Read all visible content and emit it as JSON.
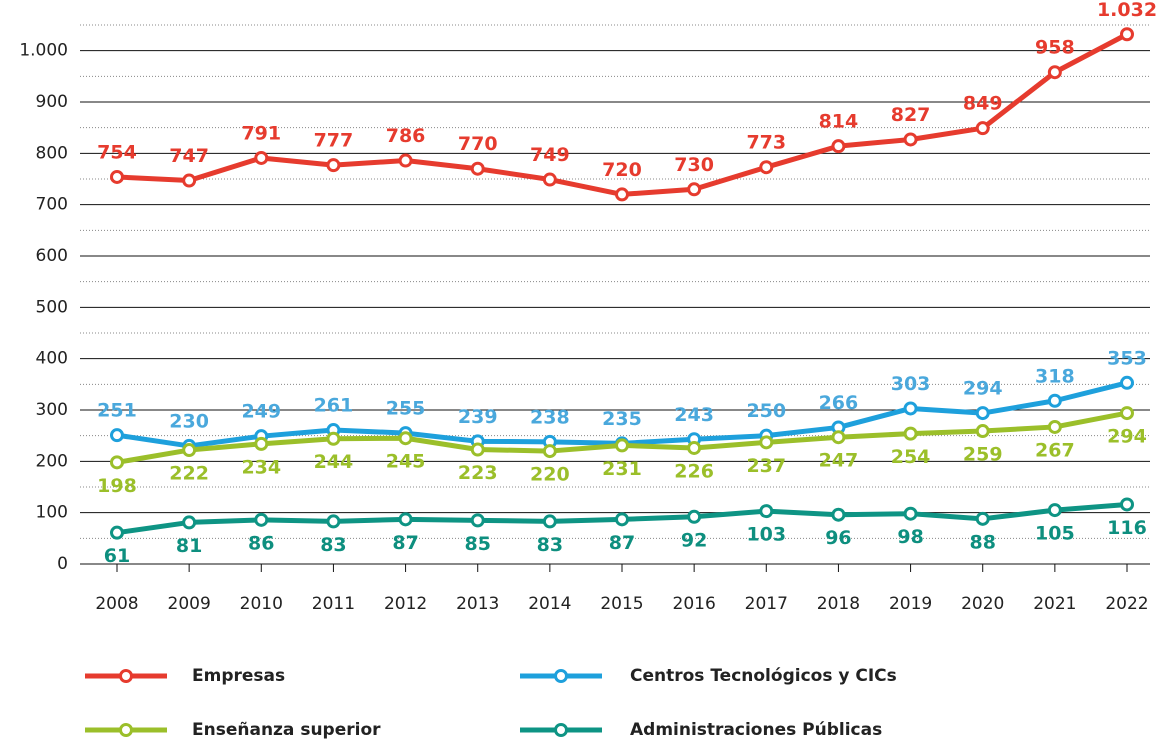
{
  "chart_data": {
    "type": "line",
    "categories": [
      "2008",
      "2009",
      "2010",
      "2011",
      "2012",
      "2013",
      "2014",
      "2015",
      "2016",
      "2017",
      "2018",
      "2019",
      "2020",
      "2021",
      "2022"
    ],
    "ylim": [
      0,
      1050
    ],
    "yticks": [
      0,
      100,
      200,
      300,
      400,
      500,
      600,
      700,
      800,
      900,
      {
        "value": 1000,
        "label": "1.000"
      }
    ],
    "yminorticks": [
      50,
      150,
      250,
      350,
      450,
      550,
      650,
      750,
      850,
      950,
      1050
    ],
    "grid": true,
    "legend": "bottom",
    "series": [
      {
        "name": "Empresas",
        "color": "#e63b2e",
        "values": [
          754,
          747,
          791,
          777,
          786,
          770,
          749,
          720,
          730,
          773,
          814,
          827,
          849,
          958,
          1032
        ],
        "value_labels": [
          "754",
          "747",
          "791",
          "777",
          "786",
          "770",
          "749",
          "720",
          "730",
          "773",
          "814",
          "827",
          "849",
          "958",
          "1.032"
        ]
      },
      {
        "name": "Centros Tecnológicos y CICs",
        "color": "#1ea0dc",
        "values": [
          251,
          230,
          249,
          261,
          255,
          239,
          238,
          235,
          243,
          250,
          266,
          303,
          294,
          318,
          353
        ]
      },
      {
        "name": "Enseñanza superior",
        "color": "#9bbf2a",
        "values": [
          198,
          222,
          234,
          244,
          245,
          223,
          220,
          231,
          226,
          237,
          247,
          254,
          259,
          267,
          294
        ]
      },
      {
        "name": "Administraciones Públicas",
        "color": "#0e9484",
        "values": [
          61,
          81,
          86,
          83,
          87,
          85,
          83,
          87,
          92,
          103,
          96,
          98,
          88,
          105,
          116
        ]
      }
    ]
  }
}
